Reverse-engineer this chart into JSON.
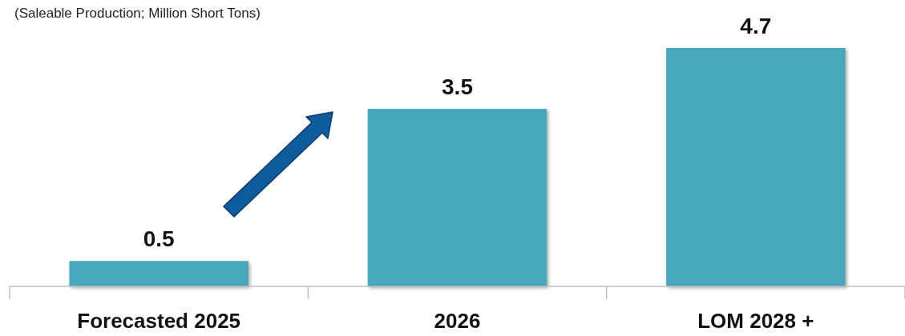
{
  "chart_data": {
    "type": "bar",
    "title": "(Saleable Production; Million Short Tons)",
    "categories": [
      "Forecasted 2025",
      "2026",
      "LOM 2028 +"
    ],
    "values": [
      0.5,
      3.5,
      4.7
    ],
    "color": "#48a6bd",
    "data_labels": true
  }
}
